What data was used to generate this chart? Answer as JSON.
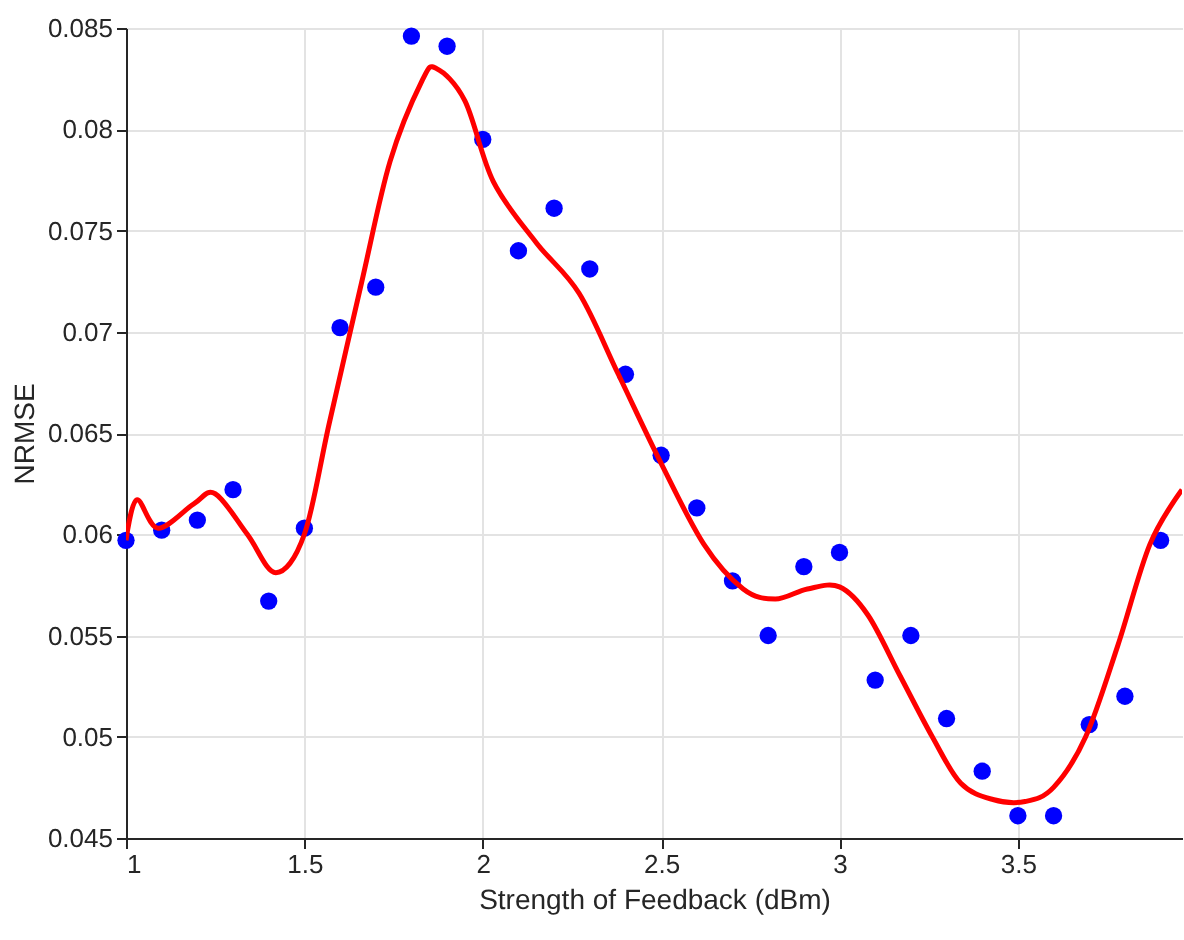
{
  "chart_data": {
    "type": "scatter",
    "xlabel": "Strength of Feedback (dBm)",
    "ylabel": "NRMSE",
    "xlim": [
      1,
      3.96
    ],
    "ylim": [
      0.045,
      0.085
    ],
    "xticks": [
      1,
      1.5,
      2,
      2.5,
      3,
      3.5
    ],
    "yticks": [
      0.045,
      0.05,
      0.055,
      0.06,
      0.065,
      0.07,
      0.075,
      0.08,
      0.085
    ],
    "grid": true,
    "series": [
      {
        "color": "#0000ff",
        "marker": "circle",
        "x": [
          1.0,
          1.1,
          1.2,
          1.3,
          1.4,
          1.5,
          1.6,
          1.7,
          1.8,
          1.9,
          2.0,
          2.1,
          2.2,
          2.3,
          2.4,
          2.5,
          2.6,
          2.7,
          2.8,
          2.9,
          3.0,
          3.1,
          3.2,
          3.3,
          3.4,
          3.5,
          3.6,
          3.7,
          3.8,
          3.9
        ],
        "values": [
          0.0597,
          0.0602,
          0.0607,
          0.0622,
          0.0567,
          0.0603,
          0.0702,
          0.0722,
          0.0846,
          0.0841,
          0.0795,
          0.074,
          0.0761,
          0.0731,
          0.0679,
          0.0639,
          0.0613,
          0.0577,
          0.055,
          0.0584,
          0.0591,
          0.0528,
          0.055,
          0.0509,
          0.0483,
          0.0461,
          0.0461,
          0.0506,
          0.052,
          0.0597
        ]
      },
      {
        "type": "line",
        "color": "#ff0000",
        "marker": "none",
        "line_style": "solid",
        "x": [
          1.0,
          1.03,
          1.09,
          1.19,
          1.25,
          1.34,
          1.42,
          1.5,
          1.57,
          1.66,
          1.74,
          1.83,
          1.87,
          1.95,
          2.03,
          2.15,
          2.27,
          2.38,
          2.5,
          2.62,
          2.73,
          2.82,
          2.91,
          3.0,
          3.08,
          3.17,
          3.26,
          3.34,
          3.43,
          3.52,
          3.6,
          3.69,
          3.78,
          3.87,
          3.96
        ],
        "values": [
          0.0597,
          0.0617,
          0.0603,
          0.0615,
          0.062,
          0.06,
          0.0581,
          0.06,
          0.0655,
          0.0724,
          0.0784,
          0.0824,
          0.083,
          0.0814,
          0.0774,
          0.0744,
          0.0719,
          0.0679,
          0.0635,
          0.0595,
          0.0573,
          0.0568,
          0.0573,
          0.0574,
          0.056,
          0.053,
          0.05,
          0.0477,
          0.0469,
          0.0468,
          0.0475,
          0.05,
          0.0545,
          0.0595,
          0.0622
        ]
      }
    ]
  }
}
